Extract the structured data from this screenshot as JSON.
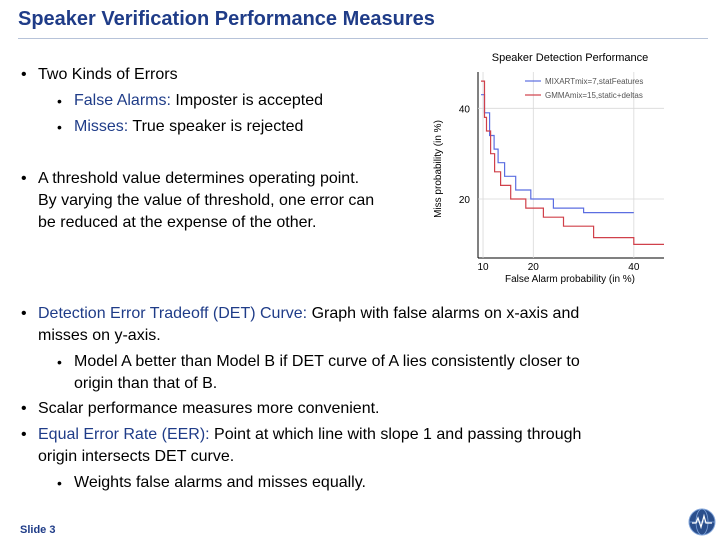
{
  "slide": {
    "title": "Speaker Verification Performance Measures",
    "footer": "Slide 3",
    "bullets": {
      "errors_heading": "Two Kinds of Errors",
      "false_alarms_term": "False Alarms:",
      "false_alarms_text": " Imposter is accepted",
      "misses_term": "Misses:",
      "misses_text": " True speaker is rejected",
      "threshold_l1": "A threshold value determines operating point.",
      "threshold_l2": "By varying the value of threshold, one error can",
      "threshold_l3": "be reduced at the expense of the other.",
      "det_term": "Detection Error Tradeoff (DET) Curve:",
      "det_text_l1": " Graph with false alarms on x-axis and",
      "det_text_l2": "misses on y-axis.",
      "model_l1": "Model A better than Model B if DET curve of A lies consistently closer to",
      "model_l2": "origin than that of B.",
      "scalar": "Scalar performance measures more convenient.",
      "eer_term": "Equal Error Rate (EER):",
      "eer_text_l1": " Point at which line with slope 1 and passing through",
      "eer_text_l2": "origin intersects DET curve.",
      "weights": "Weights false alarms and misses equally."
    }
  },
  "colors": {
    "title": "#1f3c88",
    "term": "#1f3c88",
    "series_a": "#5b6ee1",
    "series_b": "#d0404a"
  },
  "chart_data": {
    "type": "line",
    "title": "Speaker Detection Performance",
    "xlabel": "False Alarm probability (in %)",
    "ylabel": "Miss probability (in %)",
    "x_ticks": [
      10,
      20,
      40
    ],
    "y_ticks": [
      20,
      40
    ],
    "xlim": [
      9,
      46
    ],
    "ylim": [
      7,
      48
    ],
    "legend_position": "top-right",
    "series": [
      {
        "name": "MIXARTmix=7,statFeatures",
        "color": "#5b6ee1",
        "points": [
          [
            9.6,
            43
          ],
          [
            10.3,
            43
          ],
          [
            10.3,
            39
          ],
          [
            11.3,
            39
          ],
          [
            11.3,
            34
          ],
          [
            12.2,
            34
          ],
          [
            12.2,
            31
          ],
          [
            13,
            31
          ],
          [
            13,
            28
          ],
          [
            14.3,
            28
          ],
          [
            14.3,
            25
          ],
          [
            16.5,
            25
          ],
          [
            16.5,
            22
          ],
          [
            19.5,
            22
          ],
          [
            19.5,
            20
          ],
          [
            24,
            20
          ],
          [
            24,
            18
          ],
          [
            30,
            18
          ],
          [
            30,
            17
          ],
          [
            40,
            17
          ]
        ]
      },
      {
        "name": "GMMAmix=15,static+deltas",
        "color": "#d0404a",
        "points": [
          [
            9.6,
            46
          ],
          [
            10.3,
            46
          ],
          [
            10.3,
            38
          ],
          [
            10.7,
            38
          ],
          [
            10.7,
            35
          ],
          [
            11.5,
            35
          ],
          [
            11.5,
            30
          ],
          [
            12.3,
            30
          ],
          [
            12.3,
            26
          ],
          [
            13.5,
            26
          ],
          [
            13.5,
            23
          ],
          [
            15.5,
            23
          ],
          [
            15.5,
            20
          ],
          [
            18.5,
            20
          ],
          [
            18.5,
            18
          ],
          [
            22,
            18
          ],
          [
            22,
            16
          ],
          [
            26,
            16
          ],
          [
            26,
            14
          ],
          [
            32,
            14
          ],
          [
            32,
            11.5
          ],
          [
            40,
            11.5
          ],
          [
            40,
            10
          ],
          [
            46,
            10
          ]
        ]
      }
    ]
  }
}
